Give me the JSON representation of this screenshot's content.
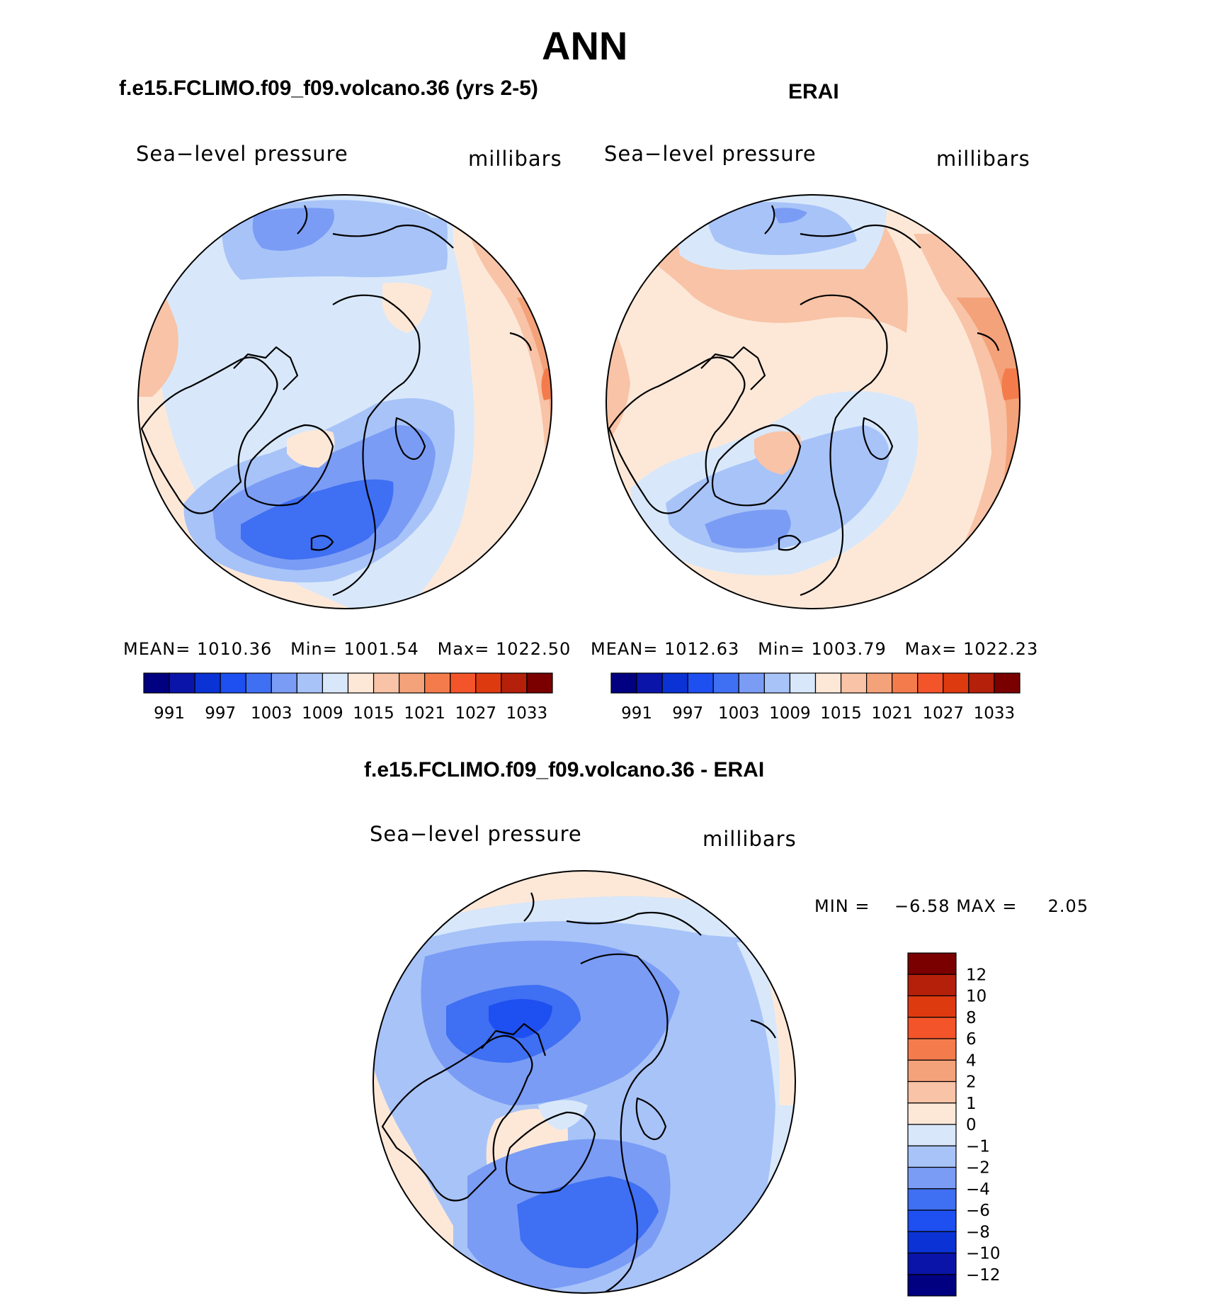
{
  "page": {
    "title": "ANN"
  },
  "panels": [
    {
      "id": "model",
      "case_title": "f.e15.FCLIMO.f09_f09.volcano.36 (yrs 2-5)",
      "variable": "Sea−level pressure",
      "units": "millibars",
      "stats": {
        "mean_label": "MEAN=",
        "mean": "1010.36",
        "min_label": "Min=",
        "min": "1001.54",
        "max_label": "Max=",
        "max": "1022.50"
      }
    },
    {
      "id": "obs",
      "case_title": "ERAI",
      "variable": "Sea−level pressure",
      "units": "millibars",
      "stats": {
        "mean_label": "MEAN=",
        "mean": "1012.63",
        "min_label": "Min=",
        "min": "1003.79",
        "max_label": "Max=",
        "max": "1022.23"
      }
    }
  ],
  "diff_panel": {
    "case_title": "f.e15.FCLIMO.f09_f09.volcano.36 - ERAI",
    "variable": "Sea−level pressure",
    "units": "millibars",
    "stats": {
      "min_label": "MIN =",
      "min": "−6.58",
      "max_label": "MAX =",
      "max": "2.05"
    }
  },
  "abs_colorbar": {
    "colors": [
      "#000080",
      "#0a14a8",
      "#0a32d4",
      "#1e4ff0",
      "#3f6ff2",
      "#7a9cf5",
      "#a8c3f8",
      "#d8e8fa",
      "#fde8d8",
      "#f8c3a6",
      "#f4a27a",
      "#f47c4c",
      "#f4542a",
      "#de3a10",
      "#b4200a",
      "#7a0000"
    ],
    "ticks": [
      "991",
      "997",
      "1003",
      "1009",
      "1015",
      "1021",
      "1027",
      "1033"
    ]
  },
  "diff_colorbar": {
    "colors": [
      "#7a0000",
      "#b4200a",
      "#de3a10",
      "#f4542a",
      "#f47c4c",
      "#f4a27a",
      "#f8c3a6",
      "#fde8d8",
      "#d8e8fa",
      "#a8c3f8",
      "#7a9cf5",
      "#3f6ff2",
      "#1e4ff0",
      "#0a32d4",
      "#0a14a8",
      "#000080"
    ],
    "ticks": [
      "12",
      "10",
      "8",
      "6",
      "4",
      "2",
      "1",
      "0",
      "−1",
      "−2",
      "−4",
      "−6",
      "−8",
      "−10",
      "−12"
    ]
  }
}
